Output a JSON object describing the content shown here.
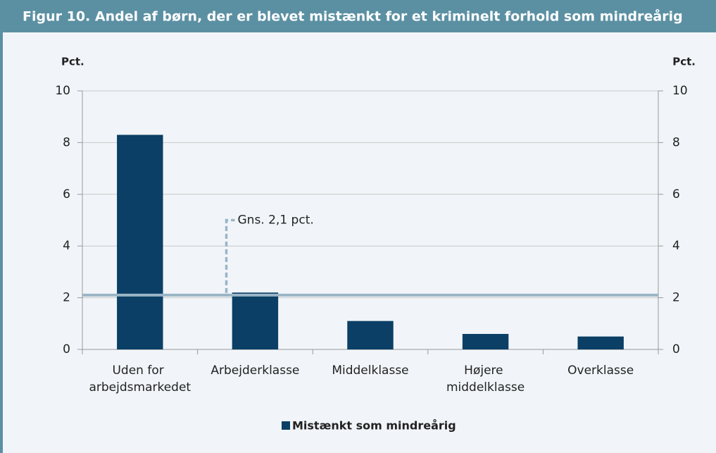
{
  "chart_data": {
    "type": "bar",
    "title": "Figur 10. Andel af børn, der er blevet mistænkt for et kriminelt forhold som mindreårig",
    "ylabel": "Pct.",
    "y2label": "Pct.",
    "categories": [
      "Uden for arbejdsmarkedet",
      "Arbejderklasse",
      "Middelklasse",
      "Højere middelklasse",
      "Overklasse"
    ],
    "series": [
      {
        "name": "Mistænkt som mindreårig",
        "color": "#0b3f66",
        "values": [
          8.3,
          2.2,
          1.1,
          0.6,
          0.5
        ]
      }
    ],
    "average": {
      "value": 2.1,
      "label": "Gns. 2,1 pct.",
      "color": "#9ab5c6"
    },
    "ylim": [
      0,
      10
    ],
    "yticks": [
      0,
      2,
      4,
      6,
      8,
      10
    ],
    "y2lim": [
      0,
      10
    ],
    "y2ticks": [
      0,
      2,
      4,
      6,
      8,
      10
    ],
    "grid": true,
    "legend": "bottom"
  }
}
